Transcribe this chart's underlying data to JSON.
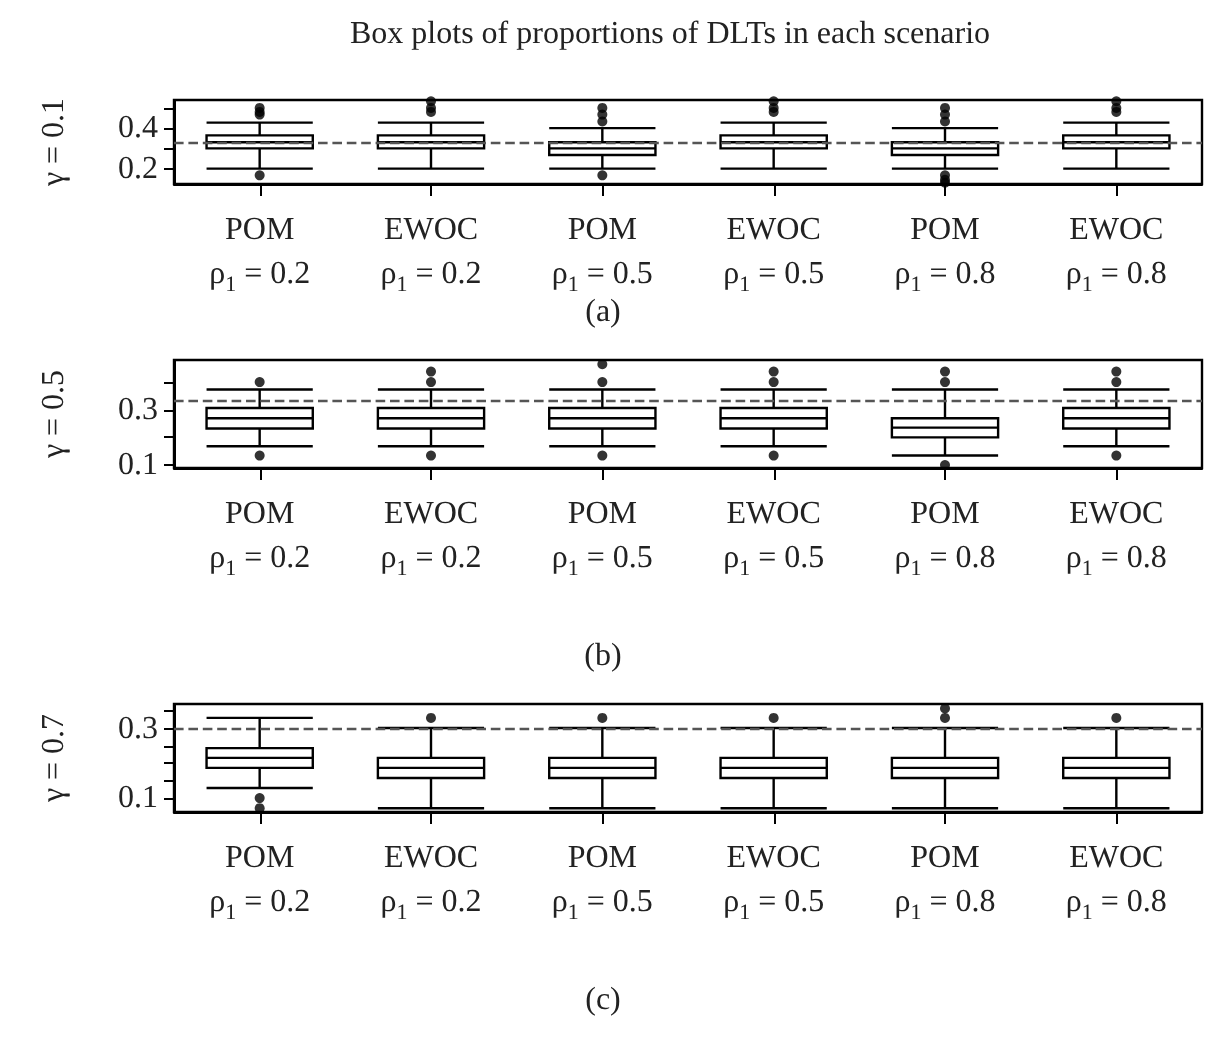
{
  "chart_data": [
    {
      "type": "box",
      "title": "Box plots of proportions of DLTs in each scenario",
      "ylabel": "γ = 0.1",
      "annotations": [
        "(a)"
      ],
      "categories": [
        "POM\nρ$_{1}$ = 0.2",
        "EWOC\nρ$_{1}$ = 0.2",
        "POM\nρ$_{1}$ = 0.5",
        "EWOC\nρ$_{1}$ = 0.5",
        "POM\nρ$_{1}$ = 0.8",
        "EWOC\nρ$_{1}$ = 0.8"
      ],
      "boxes": [
        {
          "low": 0.2,
          "q1": 0.3,
          "median": 0.33,
          "q3": 0.364,
          "high": 0.427,
          "outliers": [
            0.5,
            0.48,
            0.467,
            0.167
          ]
        },
        {
          "low": 0.2,
          "q1": 0.3,
          "median": 0.33,
          "q3": 0.364,
          "high": 0.427,
          "outliers": [
            0.533,
            0.5,
            0.48
          ]
        },
        {
          "low": 0.2,
          "q1": 0.267,
          "median": 0.3,
          "q3": 0.33,
          "high": 0.4,
          "outliers": [
            0.5,
            0.467,
            0.433,
            0.167
          ]
        },
        {
          "low": 0.2,
          "q1": 0.3,
          "median": 0.33,
          "q3": 0.364,
          "high": 0.427,
          "outliers": [
            0.533,
            0.5,
            0.48
          ]
        },
        {
          "low": 0.2,
          "q1": 0.267,
          "median": 0.3,
          "q3": 0.33,
          "high": 0.4,
          "outliers": [
            0.5,
            0.467,
            0.433,
            0.167,
            0.145,
            0.13
          ]
        },
        {
          "low": 0.2,
          "q1": 0.3,
          "median": 0.33,
          "q3": 0.364,
          "high": 0.427,
          "outliers": [
            0.533,
            0.5,
            0.48
          ]
        }
      ],
      "ylim": [
        0.124,
        0.539
      ],
      "yticks": [
        0.2,
        {
          "value": 0.3,
          "label": null
        },
        0.4,
        {
          "value": 0.5,
          "label": null
        }
      ],
      "ref_lines": [
        {
          "axis": "y",
          "value": 0.33,
          "color": "#555555",
          "line_style": "dashed"
        }
      ]
    },
    {
      "type": "box",
      "ylabel": "γ = 0.5",
      "annotations": [
        "(b)"
      ],
      "categories": [
        "POM\nρ$_{1}$ = 0.2",
        "EWOC\nρ$_{1}$ = 0.2",
        "POM\nρ$_{1}$ = 0.5",
        "EWOC\nρ$_{1}$ = 0.5",
        "POM\nρ$_{1}$ = 0.8",
        "EWOC\nρ$_{1}$ = 0.8"
      ],
      "boxes": [
        {
          "low": 0.168,
          "q1": 0.232,
          "median": 0.269,
          "q3": 0.306,
          "high": 0.373,
          "outliers": [
            0.4,
            0.134
          ]
        },
        {
          "low": 0.168,
          "q1": 0.232,
          "median": 0.269,
          "q3": 0.306,
          "high": 0.373,
          "outliers": [
            0.438,
            0.4,
            0.134
          ]
        },
        {
          "low": 0.168,
          "q1": 0.232,
          "median": 0.269,
          "q3": 0.306,
          "high": 0.373,
          "outliers": [
            0.465,
            0.4,
            0.134
          ]
        },
        {
          "low": 0.168,
          "q1": 0.232,
          "median": 0.269,
          "q3": 0.306,
          "high": 0.373,
          "outliers": [
            0.438,
            0.4,
            0.134
          ]
        },
        {
          "low": 0.134,
          "q1": 0.2,
          "median": 0.235,
          "q3": 0.269,
          "high": 0.373,
          "outliers": [
            0.438,
            0.4,
            0.1
          ]
        },
        {
          "low": 0.168,
          "q1": 0.232,
          "median": 0.269,
          "q3": 0.306,
          "high": 0.373,
          "outliers": [
            0.438,
            0.4,
            0.134
          ]
        }
      ],
      "ylim": [
        0.089,
        0.48
      ],
      "yticks": [
        0.1,
        {
          "value": 0.2,
          "label": null
        },
        0.3,
        {
          "value": 0.4,
          "label": null
        }
      ],
      "ref_lines": [
        {
          "axis": "y",
          "value": 0.331,
          "color": "#555555",
          "line_style": "dashed"
        }
      ]
    },
    {
      "type": "box",
      "ylabel": "γ = 0.7",
      "annotations": [
        "(c)"
      ],
      "categories": [
        "POM\nρ$_{1}$ = 0.2",
        "EWOC\nρ$_{1}$ = 0.2",
        "POM\nρ$_{1}$ = 0.5",
        "EWOC\nρ$_{1}$ = 0.5",
        "POM\nρ$_{1}$ = 0.8",
        "EWOC\nρ$_{1}$ = 0.8"
      ],
      "boxes": [
        {
          "low": 0.129,
          "q1": 0.187,
          "median": 0.216,
          "q3": 0.244,
          "high": 0.331,
          "outliers": [
            0.1,
            0.071
          ]
        },
        {
          "low": 0.071,
          "q1": 0.158,
          "median": 0.187,
          "q3": 0.216,
          "high": 0.302,
          "outliers": [
            0.331
          ]
        },
        {
          "low": 0.071,
          "q1": 0.158,
          "median": 0.187,
          "q3": 0.216,
          "high": 0.302,
          "outliers": [
            0.331
          ]
        },
        {
          "low": 0.071,
          "q1": 0.158,
          "median": 0.187,
          "q3": 0.216,
          "high": 0.302,
          "outliers": [
            0.331
          ]
        },
        {
          "low": 0.071,
          "q1": 0.158,
          "median": 0.187,
          "q3": 0.216,
          "high": 0.302,
          "outliers": [
            0.358,
            0.331
          ]
        },
        {
          "low": 0.071,
          "q1": 0.158,
          "median": 0.187,
          "q3": 0.216,
          "high": 0.302,
          "outliers": [
            0.331
          ]
        }
      ],
      "ylim": [
        0.06,
        0.371
      ],
      "yticks": [
        0.1,
        {
          "value": 0.15,
          "label": null
        },
        {
          "value": 0.2,
          "label": null
        },
        {
          "value": 0.25,
          "label": null
        },
        0.3,
        {
          "value": 0.35,
          "label": null
        }
      ],
      "ref_lines": [
        {
          "axis": "y",
          "value": 0.3,
          "color": "#555555",
          "line_style": "dashed"
        }
      ]
    }
  ]
}
